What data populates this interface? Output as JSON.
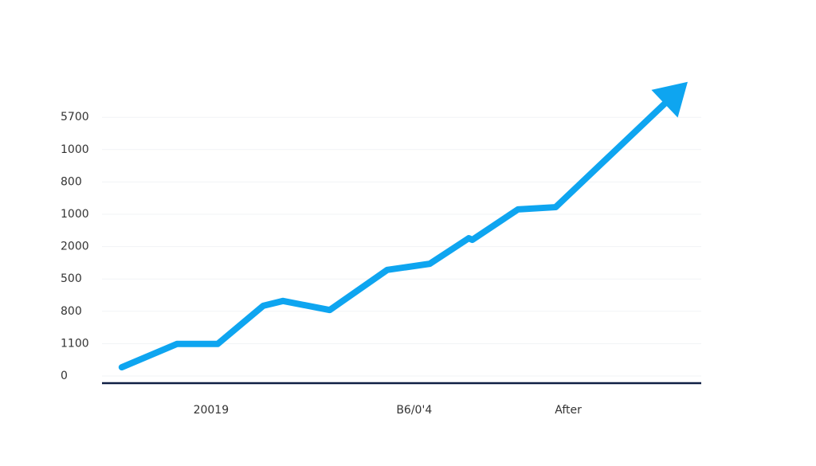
{
  "chart_data": {
    "type": "line",
    "x": [
      3.3,
      12.5,
      19.3,
      26.9,
      30.2,
      38.0,
      47.6,
      54.7,
      61.2,
      61.8,
      69.4,
      75.7,
      96.0
    ],
    "series": [
      {
        "color": "#0ea5f0",
        "values": [
          0.27,
          0.99,
          0.99,
          2.17,
          2.32,
          2.04,
          3.28,
          3.47,
          4.26,
          4.21,
          5.15,
          5.22,
          8.79
        ]
      }
    ],
    "xlim": [
      0,
      100
    ],
    "xticks": [
      {
        "value": 18.2,
        "label": "20019"
      },
      {
        "value": 52.1,
        "label": "B6/0'4"
      },
      {
        "value": 77.8,
        "label": "After"
      }
    ],
    "ylim": [
      0,
      9
    ],
    "yticks": [
      {
        "value": 0,
        "label": "0"
      },
      {
        "value": 1,
        "label": "1100"
      },
      {
        "value": 2,
        "label": "800"
      },
      {
        "value": 3,
        "label": "500"
      },
      {
        "value": 4,
        "label": "2000"
      },
      {
        "value": 5,
        "label": "1000"
      },
      {
        "value": 6,
        "label": "800"
      },
      {
        "value": 7,
        "label": "1000"
      },
      {
        "value": 8,
        "label": "5700"
      }
    ],
    "grid": true
  }
}
